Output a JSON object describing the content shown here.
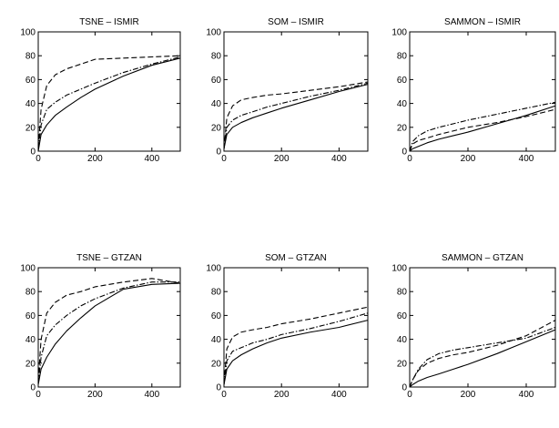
{
  "chart_data": [
    {
      "type": "line",
      "title": "TSNE – ISMIR",
      "xlim": [
        0,
        500
      ],
      "ylim": [
        0,
        100
      ],
      "xticks": [
        0,
        200,
        400
      ],
      "yticks": [
        0,
        20,
        40,
        60,
        80,
        100
      ],
      "grid": false,
      "series": [
        {
          "style": "solid",
          "x": [
            0,
            10,
            30,
            60,
            100,
            150,
            200,
            300,
            400,
            500
          ],
          "y": [
            0,
            14,
            22,
            30,
            37,
            45,
            52,
            63,
            72,
            78
          ]
        },
        {
          "style": "dashed",
          "x": [
            0,
            10,
            30,
            60,
            100,
            150,
            200,
            300,
            400,
            500
          ],
          "y": [
            3,
            35,
            55,
            64,
            69,
            73,
            77,
            78,
            79,
            80
          ]
        },
        {
          "style": "dashdot",
          "x": [
            0,
            10,
            30,
            60,
            100,
            150,
            200,
            300,
            400,
            500
          ],
          "y": [
            2,
            22,
            35,
            41,
            47,
            52,
            57,
            66,
            73,
            79
          ]
        }
      ]
    },
    {
      "type": "line",
      "title": "SOM – ISMIR",
      "xlim": [
        0,
        500
      ],
      "ylim": [
        0,
        100
      ],
      "xticks": [
        0,
        200,
        400
      ],
      "yticks": [
        0,
        20,
        40,
        60,
        80,
        100
      ],
      "grid": false,
      "series": [
        {
          "style": "solid",
          "x": [
            0,
            10,
            30,
            60,
            100,
            150,
            200,
            300,
            400,
            500
          ],
          "y": [
            2,
            14,
            20,
            24,
            28,
            32,
            36,
            43,
            50,
            56
          ]
        },
        {
          "style": "dashed",
          "x": [
            0,
            10,
            30,
            60,
            100,
            150,
            200,
            300,
            400,
            500
          ],
          "y": [
            2,
            28,
            38,
            43,
            45,
            47,
            48,
            51,
            54,
            58
          ]
        },
        {
          "style": "dashdot",
          "x": [
            0,
            10,
            30,
            60,
            100,
            150,
            200,
            300,
            400,
            500
          ],
          "y": [
            2,
            20,
            26,
            30,
            33,
            37,
            40,
            46,
            51,
            57
          ]
        }
      ]
    },
    {
      "type": "line",
      "title": "SAMMON – ISMIR",
      "xlim": [
        0,
        500
      ],
      "ylim": [
        0,
        100
      ],
      "xticks": [
        0,
        200,
        400
      ],
      "yticks": [
        0,
        20,
        40,
        60,
        80,
        100
      ],
      "grid": false,
      "series": [
        {
          "style": "solid",
          "x": [
            0,
            10,
            30,
            60,
            100,
            150,
            200,
            300,
            400,
            500
          ],
          "y": [
            0,
            2,
            4,
            7,
            10,
            13,
            16,
            23,
            30,
            38
          ]
        },
        {
          "style": "dashed",
          "x": [
            0,
            10,
            30,
            60,
            100,
            150,
            200,
            300,
            400,
            500
          ],
          "y": [
            0,
            6,
            9,
            11,
            14,
            17,
            20,
            24,
            29,
            35
          ]
        },
        {
          "style": "dashdot",
          "x": [
            0,
            10,
            30,
            60,
            100,
            150,
            200,
            300,
            400,
            500
          ],
          "y": [
            0,
            8,
            13,
            17,
            20,
            23,
            26,
            31,
            36,
            41
          ]
        }
      ]
    },
    {
      "type": "line",
      "title": "TSNE – GTZAN",
      "xlim": [
        0,
        500
      ],
      "ylim": [
        0,
        100
      ],
      "xticks": [
        0,
        200,
        400
      ],
      "yticks": [
        0,
        20,
        40,
        60,
        80,
        100
      ],
      "grid": false,
      "series": [
        {
          "style": "solid",
          "x": [
            0,
            10,
            30,
            60,
            100,
            150,
            200,
            300,
            400,
            500
          ],
          "y": [
            2,
            15,
            25,
            36,
            47,
            58,
            68,
            82,
            86,
            87
          ]
        },
        {
          "style": "dashed",
          "x": [
            0,
            10,
            30,
            60,
            100,
            150,
            200,
            300,
            400,
            500
          ],
          "y": [
            5,
            40,
            62,
            71,
            77,
            80,
            84,
            88,
            91,
            87
          ]
        },
        {
          "style": "dashdot",
          "x": [
            0,
            10,
            30,
            60,
            100,
            150,
            200,
            300,
            400,
            500
          ],
          "y": [
            3,
            25,
            43,
            52,
            60,
            68,
            74,
            83,
            88,
            88
          ]
        }
      ]
    },
    {
      "type": "line",
      "title": "SOM – GTZAN",
      "xlim": [
        0,
        500
      ],
      "ylim": [
        0,
        100
      ],
      "xticks": [
        0,
        200,
        400
      ],
      "yticks": [
        0,
        20,
        40,
        60,
        80,
        100
      ],
      "grid": false,
      "series": [
        {
          "style": "solid",
          "x": [
            0,
            10,
            30,
            60,
            100,
            150,
            200,
            300,
            400,
            500
          ],
          "y": [
            2,
            15,
            22,
            27,
            32,
            37,
            41,
            46,
            50,
            56
          ]
        },
        {
          "style": "dashed",
          "x": [
            0,
            10,
            30,
            60,
            100,
            150,
            200,
            300,
            400,
            500
          ],
          "y": [
            3,
            32,
            42,
            46,
            48,
            50,
            53,
            57,
            62,
            67
          ]
        },
        {
          "style": "dashdot",
          "x": [
            0,
            10,
            30,
            60,
            100,
            150,
            200,
            300,
            400,
            500
          ],
          "y": [
            2,
            22,
            30,
            33,
            37,
            40,
            44,
            49,
            55,
            62
          ]
        }
      ]
    },
    {
      "type": "line",
      "title": "SAMMON – GTZAN",
      "xlim": [
        0,
        500
      ],
      "ylim": [
        0,
        100
      ],
      "xticks": [
        0,
        200,
        400
      ],
      "yticks": [
        0,
        20,
        40,
        60,
        80,
        100
      ],
      "grid": false,
      "series": [
        {
          "style": "solid",
          "x": [
            0,
            10,
            30,
            60,
            100,
            150,
            200,
            300,
            400,
            500
          ],
          "y": [
            0,
            2,
            5,
            8,
            11,
            15,
            19,
            28,
            38,
            48
          ]
        },
        {
          "style": "dashed",
          "x": [
            0,
            10,
            30,
            60,
            100,
            150,
            200,
            300,
            400,
            500
          ],
          "y": [
            0,
            6,
            14,
            20,
            24,
            27,
            29,
            35,
            43,
            56
          ]
        },
        {
          "style": "dashdot",
          "x": [
            0,
            10,
            30,
            60,
            100,
            150,
            200,
            300,
            400,
            500
          ],
          "y": [
            0,
            6,
            15,
            23,
            28,
            31,
            33,
            37,
            41,
            50
          ]
        }
      ]
    }
  ]
}
